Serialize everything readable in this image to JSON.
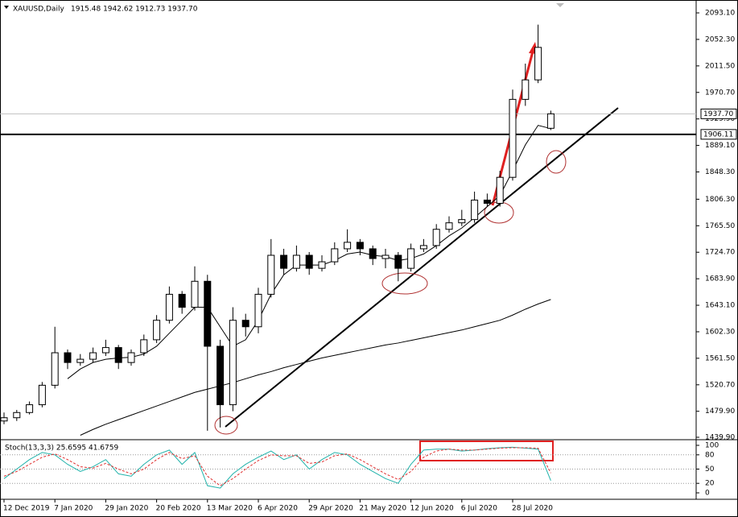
{
  "chart_data": {
    "type": "candlestick",
    "title": "XAUUSD,Daily",
    "subtitle": "1915.48 1942.62 1912.73 1937.70",
    "categories": [
      "12 Dec 2019",
      null,
      null,
      null,
      "7 Jan 2020",
      null,
      null,
      null,
      "29 Jan 2020",
      null,
      null,
      null,
      "20 Feb 2020",
      null,
      null,
      null,
      "13 Mar 2020",
      null,
      null,
      null,
      "6 Apr 2020",
      null,
      null,
      null,
      "29 Apr 2020",
      null,
      null,
      null,
      "21 May 2020",
      null,
      null,
      null,
      "12 Jun 2020",
      null,
      null,
      null,
      "6 Jul 2020",
      null,
      null,
      null,
      "28 Jul 2020",
      null,
      null,
      null
    ],
    "open": [
      1465,
      1470,
      1478,
      1490,
      1520,
      1570,
      1555,
      1560,
      1570,
      1578,
      1555,
      1570,
      1590,
      1620,
      1660,
      1640,
      1680,
      1580,
      1490,
      1620,
      1610,
      1660,
      1720,
      1700,
      1720,
      1700,
      1710,
      1730,
      1740,
      1730,
      1715,
      1720,
      1700,
      1730,
      1735,
      1760,
      1770,
      1775,
      1805,
      1800,
      1840,
      1960,
      1990,
      1915.48
    ],
    "high": [
      1478,
      1482,
      1495,
      1525,
      1610,
      1575,
      1568,
      1578,
      1590,
      1582,
      1575,
      1598,
      1628,
      1672,
      1665,
      1703,
      1690,
      1590,
      1640,
      1630,
      1670,
      1745,
      1730,
      1735,
      1725,
      1720,
      1740,
      1760,
      1745,
      1735,
      1730,
      1725,
      1738,
      1745,
      1768,
      1780,
      1790,
      1818,
      1815,
      1850,
      1975,
      2015,
      2075,
      1942.62
    ],
    "low": [
      1460,
      1465,
      1475,
      1486,
      1515,
      1545,
      1550,
      1555,
      1565,
      1545,
      1550,
      1565,
      1585,
      1615,
      1630,
      1635,
      1450,
      1455,
      1480,
      1595,
      1600,
      1655,
      1690,
      1695,
      1690,
      1695,
      1705,
      1725,
      1720,
      1705,
      1700,
      1680,
      1695,
      1725,
      1730,
      1755,
      1765,
      1770,
      1795,
      1795,
      1835,
      1950,
      1985,
      1912.73
    ],
    "close": [
      1470,
      1478,
      1490,
      1520,
      1570,
      1555,
      1560,
      1570,
      1578,
      1555,
      1570,
      1590,
      1620,
      1660,
      1640,
      1680,
      1580,
      1490,
      1620,
      1610,
      1660,
      1720,
      1700,
      1720,
      1700,
      1710,
      1730,
      1740,
      1730,
      1715,
      1720,
      1700,
      1730,
      1735,
      1760,
      1770,
      1775,
      1805,
      1800,
      1840,
      1960,
      1990,
      2040,
      1937.7
    ],
    "series": [
      {
        "color": "#000000",
        "values": [
          null,
          null,
          null,
          null,
          null,
          1530,
          1545,
          1555,
          1560,
          1562,
          1563,
          1568,
          1580,
          1600,
          1620,
          1640,
          1640,
          1610,
          1580,
          1590,
          1620,
          1660,
          1690,
          1705,
          1705,
          1705,
          1712,
          1722,
          1725,
          1720,
          1718,
          1712,
          1715,
          1722,
          1735,
          1750,
          1762,
          1778,
          1795,
          1812,
          1850,
          1890,
          1920,
          1915
        ]
      },
      {
        "color": "#000000",
        "values": [
          null,
          null,
          null,
          null,
          null,
          null,
          1443,
          1452,
          1460,
          1467,
          1474,
          1481,
          1488,
          1495,
          1502,
          1509,
          1514,
          1519,
          1524,
          1530,
          1536,
          1541,
          1547,
          1552,
          1557,
          1562,
          1566,
          1570,
          1574,
          1578,
          1582,
          1585,
          1589,
          1593,
          1597,
          1601,
          1605,
          1610,
          1615,
          1620,
          1628,
          1637,
          1645,
          1652
        ]
      }
    ],
    "ylim": [
      1439.9,
      2093.1
    ],
    "yticks": [
      {
        "value": 2093.1,
        "label": "2093.10"
      },
      {
        "value": 2052.3,
        "label": "2052.30"
      },
      {
        "value": 2011.5,
        "label": "2011.50"
      },
      {
        "value": 1970.7,
        "label": "1970.70"
      },
      {
        "value": 1929.9,
        "label": "1929.90"
      },
      {
        "value": 1889.1,
        "label": "1889.10"
      },
      {
        "value": 1848.3,
        "label": "1848.30"
      },
      {
        "value": 1806.3,
        "label": "1806.30"
      },
      {
        "value": 1765.5,
        "label": "1765.50"
      },
      {
        "value": 1724.7,
        "label": "1724.70"
      },
      {
        "value": 1683.9,
        "label": "1683.90"
      },
      {
        "value": 1643.1,
        "label": "1643.10"
      },
      {
        "value": 1602.3,
        "label": "1602.30"
      },
      {
        "value": 1561.5,
        "label": "1561.50"
      },
      {
        "value": 1520.7,
        "label": "1520.70"
      },
      {
        "value": 1479.9,
        "label": "1479.90"
      },
      {
        "value": 1439.9,
        "label": "1439.90"
      }
    ],
    "current_price": {
      "value": 1937.7,
      "label": "1937.70"
    },
    "hline": {
      "value": 1906.11,
      "label": "1906.11"
    },
    "stochastic": {
      "title": "Stoch(13,3,3) 25.6595 41.6759",
      "ylim": [
        0,
        100
      ],
      "yticks": [
        100,
        80,
        50,
        20,
        0
      ],
      "levels": [
        80,
        50,
        20
      ],
      "main": {
        "color": "#20b2aa",
        "values": [
          30,
          50,
          70,
          85,
          80,
          60,
          45,
          55,
          70,
          40,
          35,
          60,
          80,
          90,
          60,
          85,
          15,
          10,
          40,
          60,
          75,
          88,
          70,
          80,
          50,
          70,
          85,
          80,
          60,
          45,
          30,
          20,
          60,
          90,
          92,
          92,
          88,
          90,
          93,
          95,
          96,
          94,
          92,
          25.6595
        ]
      },
      "signal": {
        "color": "#e03030",
        "values": [
          35,
          45,
          60,
          75,
          82,
          70,
          55,
          52,
          62,
          50,
          40,
          50,
          70,
          85,
          72,
          78,
          35,
          15,
          30,
          50,
          68,
          80,
          78,
          78,
          62,
          65,
          78,
          82,
          70,
          55,
          40,
          28,
          45,
          75,
          88,
          92,
          90,
          90,
          92,
          94,
          95,
          95,
          94,
          41.6759
        ]
      }
    }
  }
}
